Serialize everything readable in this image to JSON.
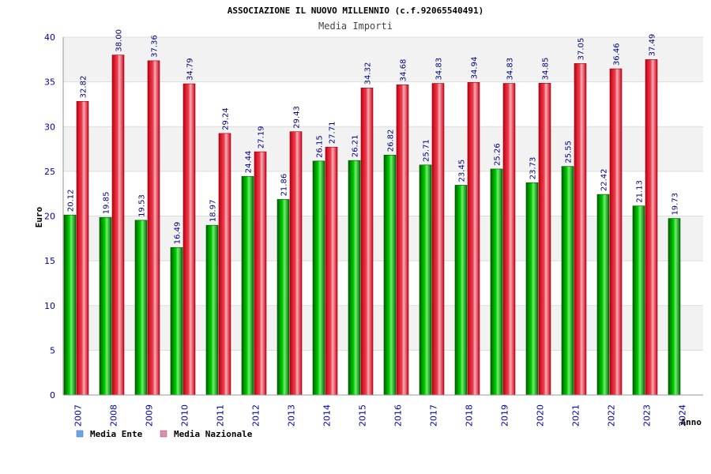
{
  "chart_data": {
    "type": "bar",
    "title": "ASSOCIAZIONE IL NUOVO MILLENNIO (c.f.92065540491)",
    "subtitle": "Media Importi",
    "xlabel": "Anno",
    "ylabel": "Euro",
    "ylim": [
      0,
      40
    ],
    "yticks": [
      "0",
      "5",
      "10",
      "15",
      "20",
      "25",
      "30",
      "35",
      "40"
    ],
    "categories": [
      "2007",
      "2008",
      "2009",
      "2010",
      "2011",
      "2012",
      "2013",
      "2014",
      "2015",
      "2016",
      "2017",
      "2018",
      "2019",
      "2020",
      "2021",
      "2022",
      "2023",
      "2024"
    ],
    "series": [
      {
        "name": "Media Ente",
        "color": "#00b000",
        "legend_color": "#6aa6e6",
        "values": [
          20.12,
          19.85,
          19.53,
          16.49,
          18.97,
          24.44,
          21.86,
          26.15,
          26.21,
          26.82,
          25.71,
          23.45,
          25.26,
          23.73,
          25.55,
          22.42,
          21.13,
          19.73
        ],
        "labels": [
          "20.12",
          "19.85",
          "19.53",
          "16.49",
          "18.97",
          "24.44",
          "21.86",
          "26.15",
          "26.21",
          "26.82",
          "25.71",
          "23.45",
          "25.26",
          "23.73",
          "25.55",
          "22.42",
          "21.13",
          "19.73"
        ]
      },
      {
        "name": "Media Nazionale",
        "color": "#e01020",
        "legend_color": "#d98fb0",
        "values": [
          32.82,
          38.0,
          37.36,
          34.79,
          29.24,
          27.19,
          29.43,
          27.71,
          34.32,
          34.68,
          34.83,
          34.94,
          34.83,
          34.85,
          37.05,
          36.46,
          37.49,
          null
        ],
        "labels": [
          "32.82",
          "38.00",
          "37.36",
          "34.79",
          "29.24",
          "27.19",
          "29.43",
          "27.71",
          "34.32",
          "34.68",
          "34.83",
          "34.94",
          "34.83",
          "34.85",
          "37.05",
          "36.46",
          "37.49",
          null
        ]
      }
    ],
    "legend": {
      "placement": "bottom-left"
    },
    "grid": true
  }
}
